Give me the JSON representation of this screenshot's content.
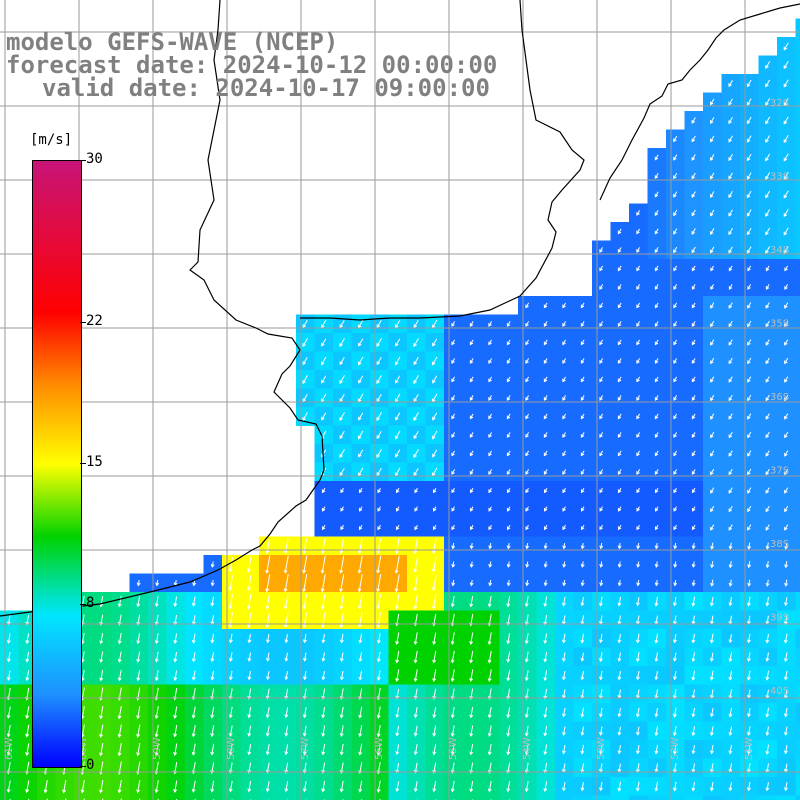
{
  "header": {
    "line1": "modelo GEFS-WAVE (NCEP)",
    "line2": "forecast date: 2024-10-12 00:00:00",
    "line3": "valid date: 2024-10-17 09:00:00"
  },
  "colorbar": {
    "unit": "[m/s]",
    "ticks": [
      "30",
      "22",
      "15",
      "8",
      "0"
    ],
    "values": [
      30,
      22,
      15,
      8,
      0
    ],
    "range": [
      0,
      30
    ]
  },
  "axes": {
    "lat_labels": [
      "32S",
      "33S",
      "34S",
      "35S",
      "36S",
      "37S",
      "38S",
      "39S",
      "40S"
    ],
    "lon_labels": [
      "61W",
      "60W",
      "59W",
      "58W",
      "57W",
      "56W",
      "55W",
      "54W",
      "53W",
      "52W",
      "51W"
    ]
  },
  "colors": {
    "grid": "#9a9a9a",
    "coast": "#000000",
    "arrow": "#ffffff"
  }
}
